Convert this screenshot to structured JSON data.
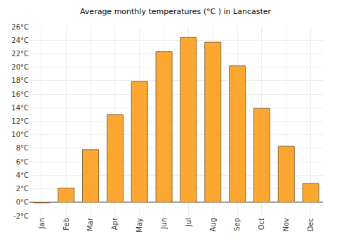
{
  "chart_data": {
    "type": "bar",
    "title": "Average monthly temperatures (°C ) in Lancaster",
    "categories": [
      "Jan",
      "Feb",
      "Mar",
      "Apr",
      "May",
      "Jun",
      "Jul",
      "Aug",
      "Sep",
      "Oct",
      "Nov",
      "Dec"
    ],
    "values": [
      -0.1,
      2.1,
      7.8,
      13.0,
      17.9,
      22.3,
      24.4,
      23.7,
      20.2,
      13.9,
      8.3,
      2.8
    ],
    "color": "#fba732",
    "ylim": [
      -2,
      26
    ],
    "yticks": [
      {
        "value": -2,
        "label": "-2°C"
      },
      {
        "value": 0,
        "label": "0°C"
      },
      {
        "value": 2,
        "label": "2°C"
      },
      {
        "value": 4,
        "label": "4°C"
      },
      {
        "value": 6,
        "label": "6°C"
      },
      {
        "value": 8,
        "label": "8°C"
      },
      {
        "value": 10,
        "label": "10°C"
      },
      {
        "value": 12,
        "label": "12°C"
      },
      {
        "value": 14,
        "label": "14°C"
      },
      {
        "value": 16,
        "label": "16°C"
      },
      {
        "value": 18,
        "label": "18°C"
      },
      {
        "value": 20,
        "label": "20°C"
      },
      {
        "value": 22,
        "label": "22°C"
      },
      {
        "value": 24,
        "label": "24°C"
      },
      {
        "value": 26,
        "label": "26°C"
      }
    ],
    "grid": true
  }
}
